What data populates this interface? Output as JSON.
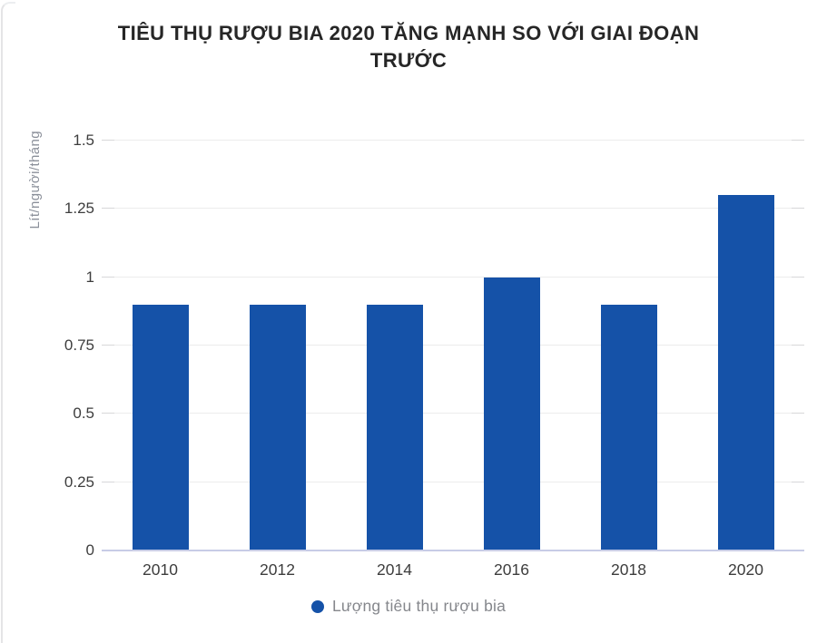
{
  "chart_data": {
    "type": "bar",
    "title": "TIÊU THỤ RƯỢU BIA 2020 TĂNG MẠNH SO VỚI GIAI ĐOẠN TRƯỚC",
    "categories": [
      "2010",
      "2012",
      "2014",
      "2016",
      "2018",
      "2020"
    ],
    "series": [
      {
        "name": "Lượng tiêu thụ rượu bia",
        "values": [
          0.9,
          0.9,
          0.9,
          1.0,
          0.9,
          1.3
        ]
      }
    ],
    "xlabel": "",
    "ylabel": "Lít/người/tháng",
    "ylim": [
      0,
      1.5
    ],
    "yticks": [
      0,
      0.25,
      0.5,
      0.75,
      1,
      1.25,
      1.5
    ],
    "ytick_labels": [
      "0",
      "0.25",
      "0.5",
      "0.75",
      "1",
      "1.25",
      "1.5"
    ],
    "grid": true,
    "legend_position": "bottom",
    "colors": {
      "bar": "#1552a8",
      "legend_dot": "#1552a8",
      "title_text": "#262626",
      "tick_text": "#3d3d3d",
      "axis_title_text": "#8b909a",
      "legend_text": "#85878c",
      "gridline": "#ececec",
      "baseline": "#c7cce6"
    }
  }
}
